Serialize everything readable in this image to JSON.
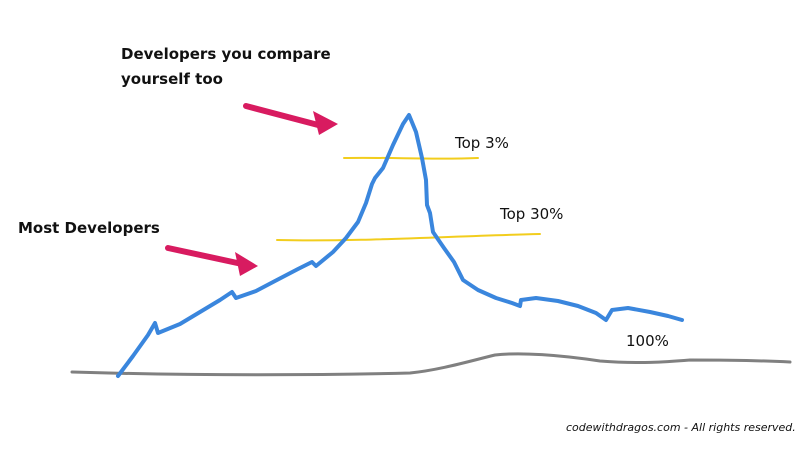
{
  "labels": {
    "compare": "Developers you compare yourself too",
    "most": "Most Developers",
    "top3": "Top 3%",
    "top30": "Top 30%",
    "hundred": "100%"
  },
  "footer": "codewithdragos.com - All rights reserved.",
  "colors": {
    "curve": "#3a86dd",
    "baseline": "#808080",
    "threshold": "#f2cd1d",
    "arrow": "#d81b60",
    "text": "#111111"
  }
}
